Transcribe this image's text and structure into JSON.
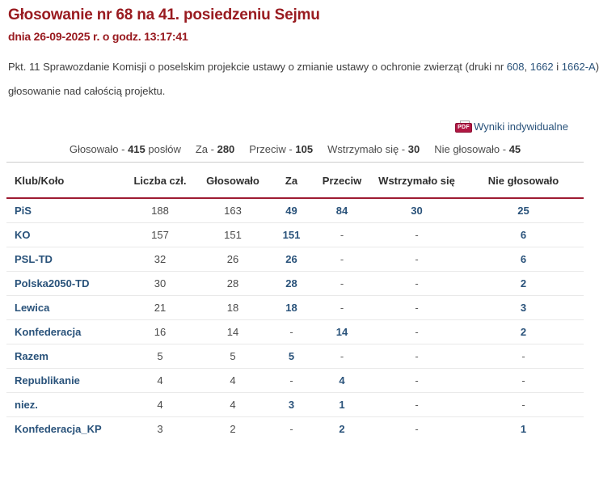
{
  "title": "Głosowanie nr 68 na 41. posiedzeniu Sejmu",
  "date_line": "dnia 26-09-2025 r. o godz. 13:17:41",
  "description": {
    "before_links": "Pkt. 11 Sprawozdanie Komisji o poselskim projekcie ustawy o zmianie ustawy o ochronie zwierząt (druki nr ",
    "links": [
      "608",
      "1662",
      "1662-A"
    ],
    "sep1": ", ",
    "sep2": " i ",
    "after_links": ")",
    "line2": "głosowanie nad całością projektu."
  },
  "pdf_link": {
    "icon": "pdf-icon",
    "icon_text": "PDF",
    "label": "Wyniki indywidualne"
  },
  "summary": [
    {
      "label": "Głosowało - ",
      "value": "415",
      "suffix": " posłów"
    },
    {
      "label": "Za - ",
      "value": "280",
      "suffix": ""
    },
    {
      "label": "Przeciw - ",
      "value": "105",
      "suffix": ""
    },
    {
      "label": "Wstrzymało się - ",
      "value": "30",
      "suffix": ""
    },
    {
      "label": "Nie głosowało - ",
      "value": "45",
      "suffix": ""
    }
  ],
  "table": {
    "headers": [
      "Klub/Koło",
      "Liczba czł.",
      "Głosowało",
      "Za",
      "Przeciw",
      "Wstrzymało się",
      "Nie głosowało"
    ],
    "rows": [
      {
        "club": "PiS",
        "members": "188",
        "voted": "163",
        "for": "49",
        "against": "84",
        "abstained": "30",
        "not_voted": "25"
      },
      {
        "club": "KO",
        "members": "157",
        "voted": "151",
        "for": "151",
        "against": "-",
        "abstained": "-",
        "not_voted": "6"
      },
      {
        "club": "PSL-TD",
        "members": "32",
        "voted": "26",
        "for": "26",
        "against": "-",
        "abstained": "-",
        "not_voted": "6"
      },
      {
        "club": "Polska2050-TD",
        "members": "30",
        "voted": "28",
        "for": "28",
        "against": "-",
        "abstained": "-",
        "not_voted": "2"
      },
      {
        "club": "Lewica",
        "members": "21",
        "voted": "18",
        "for": "18",
        "against": "-",
        "abstained": "-",
        "not_voted": "3"
      },
      {
        "club": "Konfederacja",
        "members": "16",
        "voted": "14",
        "for": "-",
        "against": "14",
        "abstained": "-",
        "not_voted": "2"
      },
      {
        "club": "Razem",
        "members": "5",
        "voted": "5",
        "for": "5",
        "against": "-",
        "abstained": "-",
        "not_voted": "-"
      },
      {
        "club": "Republikanie",
        "members": "4",
        "voted": "4",
        "for": "-",
        "against": "4",
        "abstained": "-",
        "not_voted": "-"
      },
      {
        "club": "niez.",
        "members": "4",
        "voted": "4",
        "for": "3",
        "against": "1",
        "abstained": "-",
        "not_voted": "-"
      },
      {
        "club": "Konfederacja_KP",
        "members": "3",
        "voted": "2",
        "for": "-",
        "against": "2",
        "abstained": "-",
        "not_voted": "1"
      }
    ]
  },
  "colors": {
    "heading_maroon": "#991b20",
    "divider_crimson": "#9e1b32",
    "link_navy": "#29527a",
    "body_text": "#3d3d3d",
    "row_separator": "#e9e9e9"
  }
}
